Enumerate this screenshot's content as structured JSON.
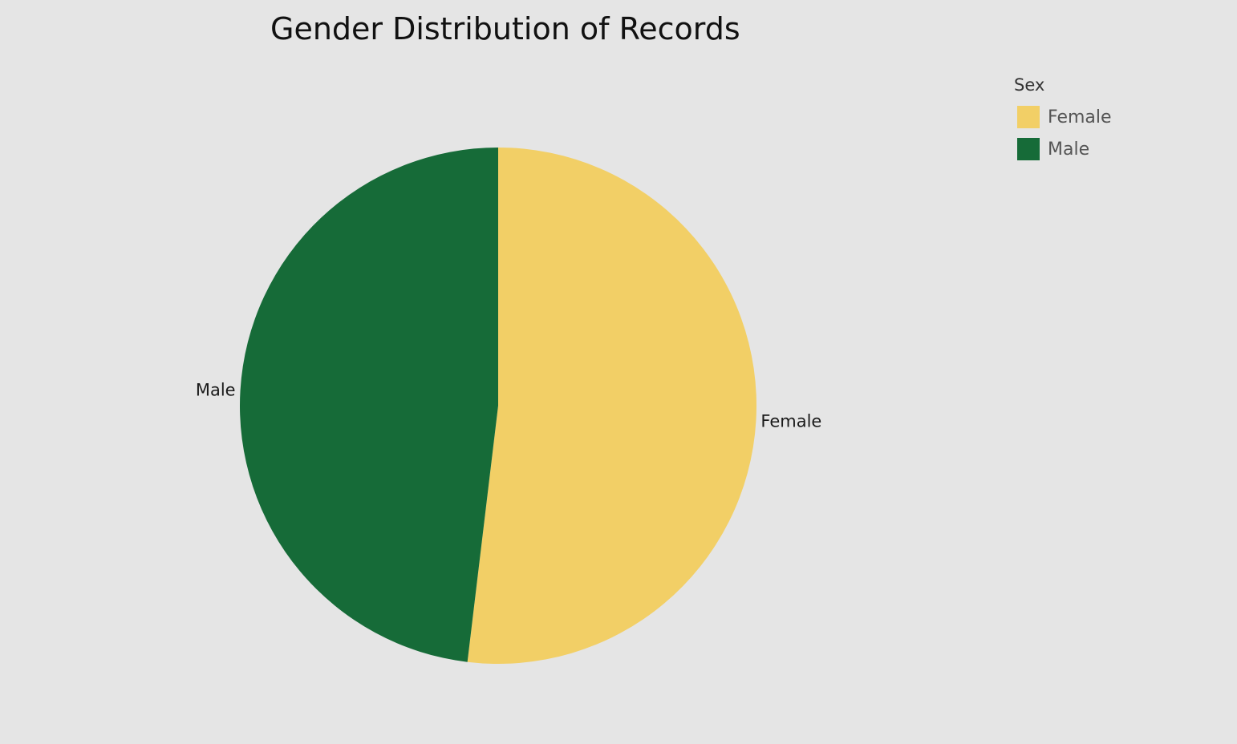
{
  "chart_data": {
    "type": "pie",
    "title": "Gender Distribution of Records",
    "categories": [
      "Female",
      "Male"
    ],
    "values": [
      51.9,
      48.1
    ],
    "colors": [
      "#f2cf66",
      "#166b38"
    ],
    "start_angle_deg": 0,
    "direction": "clockwise",
    "slice_labels": [
      "Female",
      "Male"
    ],
    "legend": {
      "title": "Sex",
      "position": "top-right",
      "items": [
        {
          "label": "Female",
          "color": "#f2cf66"
        },
        {
          "label": "Male",
          "color": "#166b38"
        }
      ]
    }
  }
}
